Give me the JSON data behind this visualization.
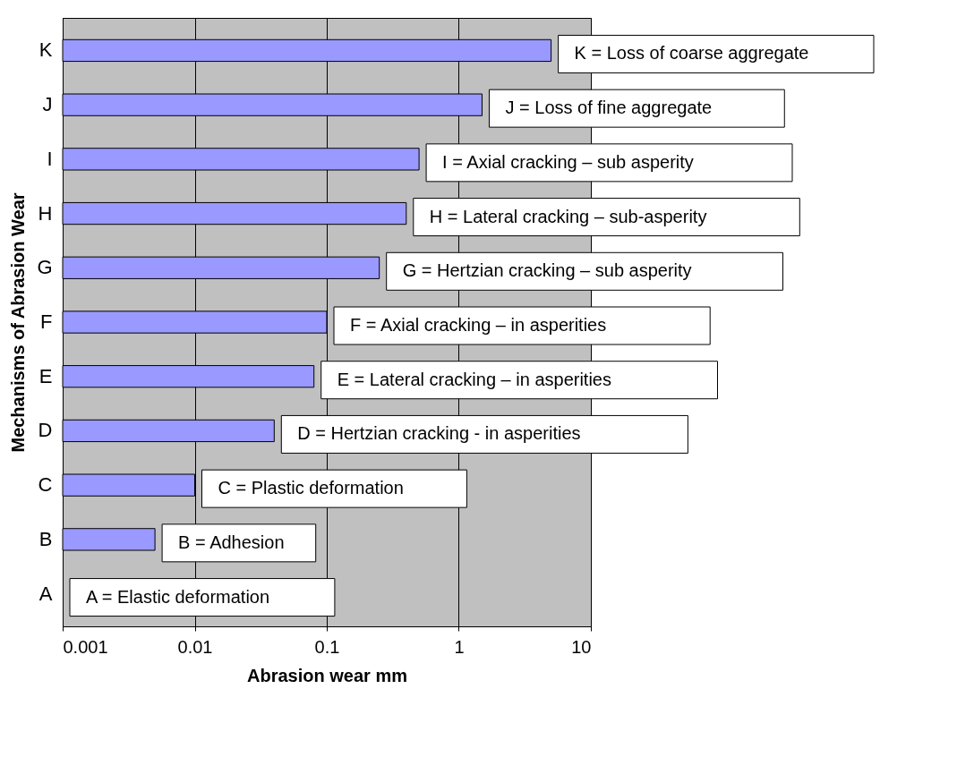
{
  "chart_data": {
    "type": "bar",
    "orientation": "horizontal",
    "log": "x",
    "xlabel": "Abrasion wear  mm",
    "ylabel": "Mechanisms of Abrasion Wear",
    "categories": [
      "K",
      "J",
      "I",
      "H",
      "G",
      "F",
      "E",
      "D",
      "C",
      "B",
      "A"
    ],
    "values": [
      5,
      1.5,
      0.5,
      0.4,
      0.25,
      0.1,
      0.08,
      0.04,
      0.01,
      0.005,
      null
    ],
    "color": "#9999ff",
    "xlim": [
      0.001,
      10
    ],
    "xticks": [
      0.001,
      0.01,
      0.1,
      1,
      10
    ],
    "grid": "x",
    "legend": false,
    "annotations": [
      "K = Loss of coarse aggregate",
      "J = Loss of fine aggregate",
      "I = Axial cracking – sub asperity",
      "H = Lateral cracking – sub-asperity",
      "G = Hertzian cracking – sub asperity",
      "F = Axial cracking – in asperities",
      "E = Lateral cracking – in asperities",
      "D = Hertzian cracking - in asperities",
      "C = Plastic deformation",
      "B = Adhesion",
      "A = Elastic deformation"
    ]
  }
}
